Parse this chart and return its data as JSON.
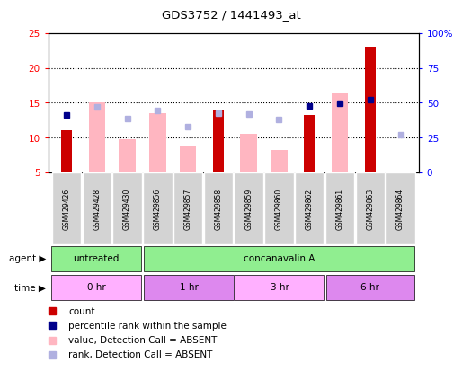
{
  "title": "GDS3752 / 1441493_at",
  "samples": [
    "GSM429426",
    "GSM429428",
    "GSM429430",
    "GSM429856",
    "GSM429857",
    "GSM429858",
    "GSM429859",
    "GSM429860",
    "GSM429862",
    "GSM429861",
    "GSM429863",
    "GSM429864"
  ],
  "count_values": [
    11.1,
    null,
    null,
    null,
    null,
    14.0,
    null,
    null,
    13.2,
    null,
    23.0,
    null
  ],
  "rank_values": [
    13.3,
    null,
    null,
    null,
    null,
    null,
    null,
    null,
    14.6,
    14.9,
    15.5,
    null
  ],
  "absent_value_bars": [
    null,
    15.0,
    9.8,
    13.5,
    8.7,
    null,
    10.5,
    8.2,
    null,
    16.4,
    null,
    5.1
  ],
  "absent_rank_dots": [
    null,
    14.4,
    12.8,
    13.9,
    11.6,
    13.5,
    13.4,
    12.6,
    null,
    null,
    null,
    10.4
  ],
  "left_ylim": [
    5,
    25
  ],
  "left_yticks": [
    5,
    10,
    15,
    20,
    25
  ],
  "right_ylim": [
    0,
    100
  ],
  "right_yticks": [
    0,
    25,
    50,
    75,
    100
  ],
  "right_yticklabels": [
    "0",
    "25",
    "50",
    "75",
    "100%"
  ],
  "count_color": "#cc0000",
  "rank_color": "#00008b",
  "absent_value_color": "#ffb6c1",
  "absent_rank_color": "#b0b0e0",
  "sample_bg": "#d3d3d3",
  "agent_color": "#90ee90",
  "time_colors": [
    "#ffb0ff",
    "#dd88ee",
    "#ffb0ff",
    "#dd88ee"
  ],
  "time_labels": [
    "0 hr",
    "1 hr",
    "3 hr",
    "6 hr"
  ],
  "time_sample_ranges": [
    [
      0,
      3
    ],
    [
      3,
      6
    ],
    [
      6,
      9
    ],
    [
      9,
      12
    ]
  ],
  "legend_items": [
    {
      "color": "#cc0000",
      "label": "count"
    },
    {
      "color": "#00008b",
      "label": "percentile rank within the sample"
    },
    {
      "color": "#ffb6c1",
      "label": "value, Detection Call = ABSENT"
    },
    {
      "color": "#b0b0e0",
      "label": "rank, Detection Call = ABSENT"
    }
  ]
}
